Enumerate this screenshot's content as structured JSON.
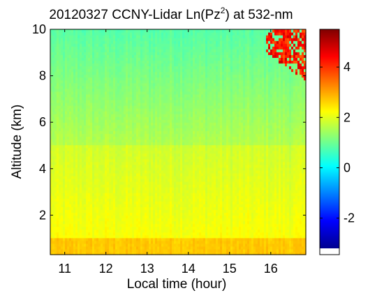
{
  "chart_data": {
    "type": "heatmap",
    "title": {
      "prefix": "20120327 CCNY-Lidar Ln(Pz",
      "superscript": "2",
      "suffix": ") at 532-nm"
    },
    "xlabel": "Local time (hour)",
    "ylabel": "Altitude (km)",
    "xlim": [
      10.65,
      16.85
    ],
    "ylim": [
      0.3,
      10
    ],
    "xticks": [
      11,
      12,
      13,
      14,
      15,
      16
    ],
    "yticks": [
      2,
      4,
      6,
      8,
      10
    ],
    "colorbar": {
      "range": [
        -3.2,
        5.5
      ],
      "ticks": [
        -2,
        0,
        2,
        4
      ],
      "colormap": "jet"
    },
    "description_values": {
      "near_surface_ln_pz2": 2.7,
      "low_troposphere_ln_pz2": 2.2,
      "mid_altitude_ln_pz2": 1.6,
      "upper_altitude_ln_pz2": 0.8,
      "cloud_layer": {
        "time_range": [
          15.9,
          16.85
        ],
        "altitude_range": [
          7.8,
          10
        ],
        "peak_ln_pz2": 4.9
      }
    }
  }
}
